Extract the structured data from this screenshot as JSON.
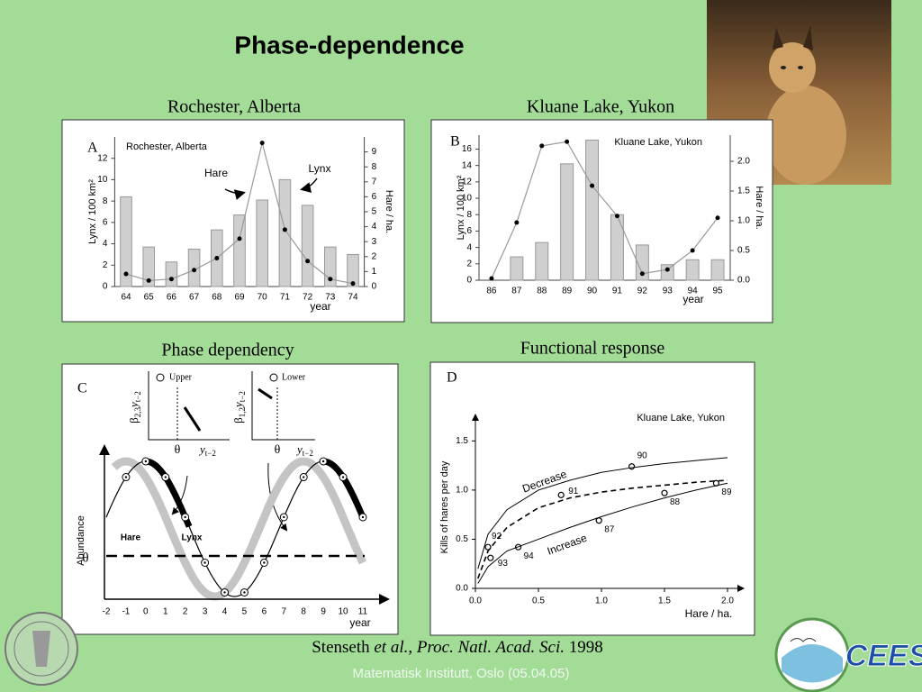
{
  "title": "Phase-dependence",
  "captions": [
    "Rochester, Alberta",
    "Kluane Lake, Yukon",
    "Phase dependency",
    "Functional response"
  ],
  "citation": {
    "author": "Stenseth",
    "etal": "et al.",
    "comma": ",",
    "journal": "Proc. Natl. Acad. Sci.",
    "year": "1998"
  },
  "footer": "Matematisk Institutt, Oslo (05.04.05)",
  "logo_text": "CEES",
  "chart_data": [
    {
      "type": "bar_line",
      "panel": "A",
      "title": "Rochester, Alberta",
      "xlabel": "year",
      "ylabel": "Lynx / 100 km²",
      "y2label": "Hare / ha.",
      "categories": [
        "64",
        "65",
        "66",
        "67",
        "68",
        "69",
        "70",
        "71",
        "72",
        "73",
        "74"
      ],
      "series": [
        {
          "name": "Lynx",
          "type": "bar",
          "color": "#cfcfcf",
          "values": [
            8.4,
            3.7,
            2.3,
            3.5,
            5.3,
            6.7,
            8.1,
            10,
            7.6,
            3.7,
            3.0
          ]
        },
        {
          "name": "Hare",
          "type": "line",
          "axis": "y2",
          "color": "#999999",
          "values": [
            0.84,
            0.4,
            0.5,
            1.1,
            1.9,
            3.2,
            9.6,
            3.8,
            1.7,
            0.5,
            0.2
          ]
        }
      ],
      "ylim": [
        0,
        14
      ],
      "yticks": [
        0,
        2,
        4,
        6,
        8,
        10,
        12
      ],
      "y2lim": [
        0,
        10
      ],
      "y2ticks": [
        0,
        1,
        2,
        3,
        4,
        5,
        6,
        7,
        8,
        9
      ]
    },
    {
      "type": "bar_line",
      "panel": "B",
      "title": "Kluane Lake, Yukon",
      "xlabel": "year",
      "ylabel": "Lynx / 100 km²",
      "y2label": "Hare / ha.",
      "categories": [
        "86",
        "87",
        "88",
        "89",
        "90",
        "91",
        "92",
        "93",
        "94",
        "95"
      ],
      "series": [
        {
          "type": "bar",
          "color": "#cfcfcf",
          "values": [
            0,
            2.85,
            4.6,
            14.2,
            17.1,
            8.0,
            4.3,
            1.9,
            2.5,
            2.5
          ]
        },
        {
          "type": "line",
          "axis": "y2",
          "color": "#999999",
          "values": [
            0.03,
            0.97,
            2.26,
            2.33,
            1.59,
            1.08,
            0.11,
            0.18,
            0.5,
            1.05
          ]
        }
      ],
      "ylim": [
        0,
        17.7
      ],
      "yticks": [
        0,
        2,
        4,
        6,
        8,
        10,
        12,
        14,
        16
      ],
      "y2lim": [
        0,
        2.44
      ],
      "y2ticks": [
        {
          "value": 0,
          "label": "0.0"
        },
        {
          "value": 0.5,
          "label": "0.5"
        },
        {
          "value": 1,
          "label": "1.0"
        },
        {
          "value": 1.5,
          "label": "1.5"
        },
        {
          "value": 2,
          "label": "2.0"
        }
      ]
    },
    {
      "type": "scatter",
      "panel": "D",
      "title": "Kluane Lake, Yukon",
      "xlabel": "Hare / ha.",
      "ylabel": "Kills of hares per day",
      "series": [
        {
          "type": "points",
          "x": [
            0.1,
            0.12,
            0.34,
            0.68,
            1.24,
            0.98,
            1.5,
            1.91
          ],
          "values": [
            0.42,
            0.31,
            0.42,
            0.95,
            1.24,
            0.69,
            0.97,
            1.07
          ],
          "labels": [
            "92",
            "93",
            "94",
            "91",
            "90",
            "87",
            "88",
            "89"
          ]
        },
        {
          "name": "Decrease",
          "type": "line",
          "x": [
            0.02,
            0.1,
            0.25,
            0.5,
            0.75,
            1.0,
            1.25,
            1.5,
            1.75,
            2.0
          ],
          "values": [
            0.2,
            0.55,
            0.8,
            1.0,
            1.1,
            1.18,
            1.23,
            1.27,
            1.3,
            1.33
          ]
        },
        {
          "type": "dashed",
          "x": [
            0.02,
            0.1,
            0.25,
            0.5,
            0.75,
            1.0,
            1.25,
            1.5,
            1.75,
            2.0
          ],
          "values": [
            0.1,
            0.38,
            0.62,
            0.82,
            0.92,
            0.98,
            1.02,
            1.05,
            1.08,
            1.1
          ]
        },
        {
          "name": "Increase",
          "type": "line",
          "x": [
            0.02,
            0.1,
            0.25,
            0.5,
            0.75,
            1.0,
            1.25,
            1.5,
            1.75,
            2.0
          ],
          "values": [
            0.05,
            0.22,
            0.38,
            0.5,
            0.62,
            0.73,
            0.83,
            0.92,
            1.0,
            1.07
          ]
        }
      ],
      "xlim": [
        0,
        2.05
      ],
      "xticks": [
        {
          "value": 0,
          "label": "0.0"
        },
        {
          "value": 0.5,
          "label": "0.5"
        },
        {
          "value": 1,
          "label": "1.0"
        },
        {
          "value": 1.5,
          "label": "1.5"
        },
        {
          "value": 2,
          "label": "2.0"
        }
      ],
      "ylim": [
        0,
        1.65
      ],
      "yticks": [
        {
          "value": 0,
          "label": "0.0"
        },
        {
          "value": 0.5,
          "label": "0.5"
        },
        {
          "value": 1,
          "label": "1.0"
        },
        {
          "value": 1.5,
          "label": "1.5"
        }
      ]
    }
  ],
  "diagram": {
    "panel": "C",
    "ylabel": "Abundance",
    "theta": "θ",
    "xlabel": "year",
    "hare": "Hare",
    "lynx": "Lynx",
    "xticks": [
      -2,
      -1,
      0,
      1,
      2,
      3,
      4,
      5,
      6,
      7,
      8,
      9,
      10,
      11
    ],
    "upper": {
      "name": "Upper",
      "beta": "β",
      "sub": "2,3",
      "var": "y",
      "varsub": "t−2"
    },
    "lower": {
      "name": "Lower",
      "beta": "β",
      "sub": "1,2",
      "var": "y",
      "varsub": "t−2"
    }
  }
}
